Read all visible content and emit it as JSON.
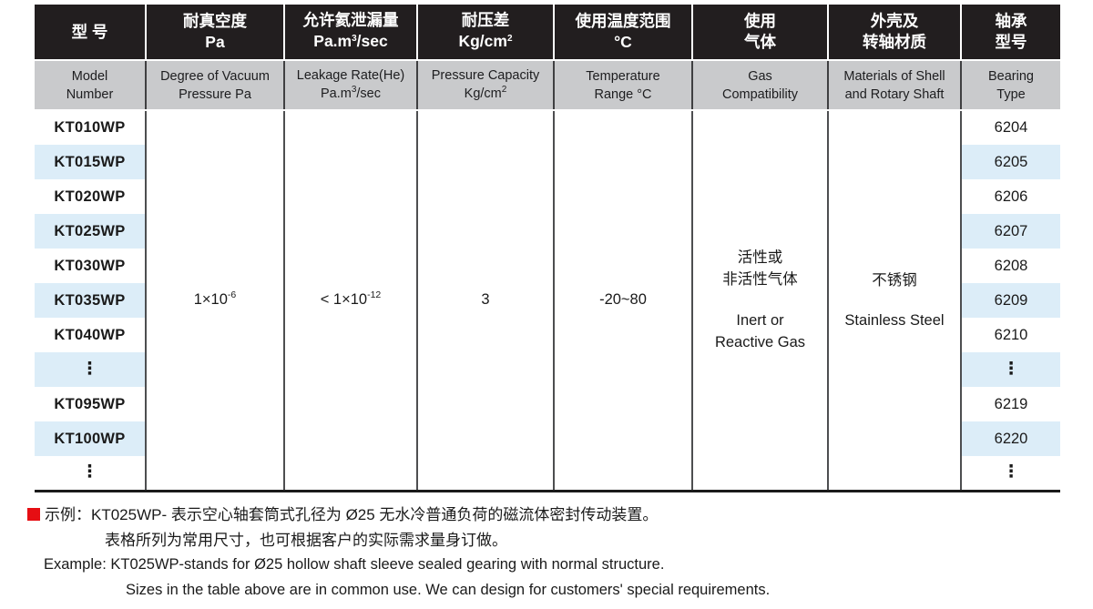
{
  "colors": {
    "header_bg": "#221e1f",
    "header_text": "#ffffff",
    "subheader_bg": "#c9cacc",
    "stripe_bg": "#dcedf8",
    "note_bullet": "#e60e13"
  },
  "table": {
    "header_cn": {
      "model": "型 号",
      "vacuum_l1": "耐真空度",
      "vacuum_l2": "Pa",
      "leakage_l1": "允许氦泄漏量",
      "leakage_l2a": "Pa.m",
      "leakage_sup": "3",
      "leakage_l2b": "/sec",
      "pressure_l1": "耐压差",
      "pressure_l2a": "Kg/cm",
      "pressure_sup": "2",
      "temp_l1": "使用温度范围",
      "temp_l2": "°C",
      "gas_l1": "使用",
      "gas_l2": "气体",
      "shell_l1": "外壳及",
      "shell_l2": "转轴材质",
      "bearing_l1": "轴承",
      "bearing_l2": "型号"
    },
    "header_en": {
      "model_l1": "Model",
      "model_l2": "Number",
      "vacuum_l1": "Degree of Vacuum",
      "vacuum_l2": "Pressure Pa",
      "leakage_l1": "Leakage Rate(He)",
      "leakage_l2a": "Pa.m",
      "leakage_sup": "3",
      "leakage_l2b": "/sec",
      "pressure_l1": "Pressure Capacity",
      "pressure_l2a": "Kg/cm",
      "pressure_sup": "2",
      "temp_l1": "Temperature",
      "temp_l2": "Range °C",
      "gas_l1": "Gas",
      "gas_l2": "Compatibility",
      "shell_l1": "Materials of Shell",
      "shell_l2": "and Rotary Shaft",
      "bearing_l1": "Bearing",
      "bearing_l2": "Type"
    },
    "merged": {
      "vacuum_base": "1×10",
      "vacuum_exp": "-6",
      "leakage_base": "< 1×10",
      "leakage_exp": "-12",
      "pressure": "3",
      "temp": "-20~80",
      "gas_cn_l1": "活性或",
      "gas_cn_l2": "非活性气体",
      "gas_en_l1": "Inert or",
      "gas_en_l2": "Reactive Gas",
      "shell_cn": "不锈钢",
      "shell_en": "Stainless Steel"
    },
    "rows": [
      {
        "model": "KT010WP",
        "bearing": "6204"
      },
      {
        "model": "KT015WP",
        "bearing": "6205"
      },
      {
        "model": "KT020WP",
        "bearing": "6206"
      },
      {
        "model": "KT025WP",
        "bearing": "6207"
      },
      {
        "model": "KT030WP",
        "bearing": "6208"
      },
      {
        "model": "KT035WP",
        "bearing": "6209"
      },
      {
        "model": "KT040WP",
        "bearing": "6210"
      },
      {
        "model": "⋮",
        "bearing": "⋮"
      },
      {
        "model": "KT095WP",
        "bearing": "6219"
      },
      {
        "model": "KT100WP",
        "bearing": "6220"
      },
      {
        "model": "⋮",
        "bearing": "⋮"
      }
    ]
  },
  "notes": {
    "cn_line1": "示例：KT025WP- 表示空心轴套筒式孔径为 Ø25 无水冷普通负荷的磁流体密封传动装置。",
    "cn_line2": "表格所列为常用尺寸，也可根据客户的实际需求量身订做。",
    "en_line1": "Example: KT025WP-stands for Ø25 hollow shaft sleeve sealed gearing with normal structure.",
    "en_line2": "Sizes in the table above are in common use. We can design for customers' special requirements."
  }
}
